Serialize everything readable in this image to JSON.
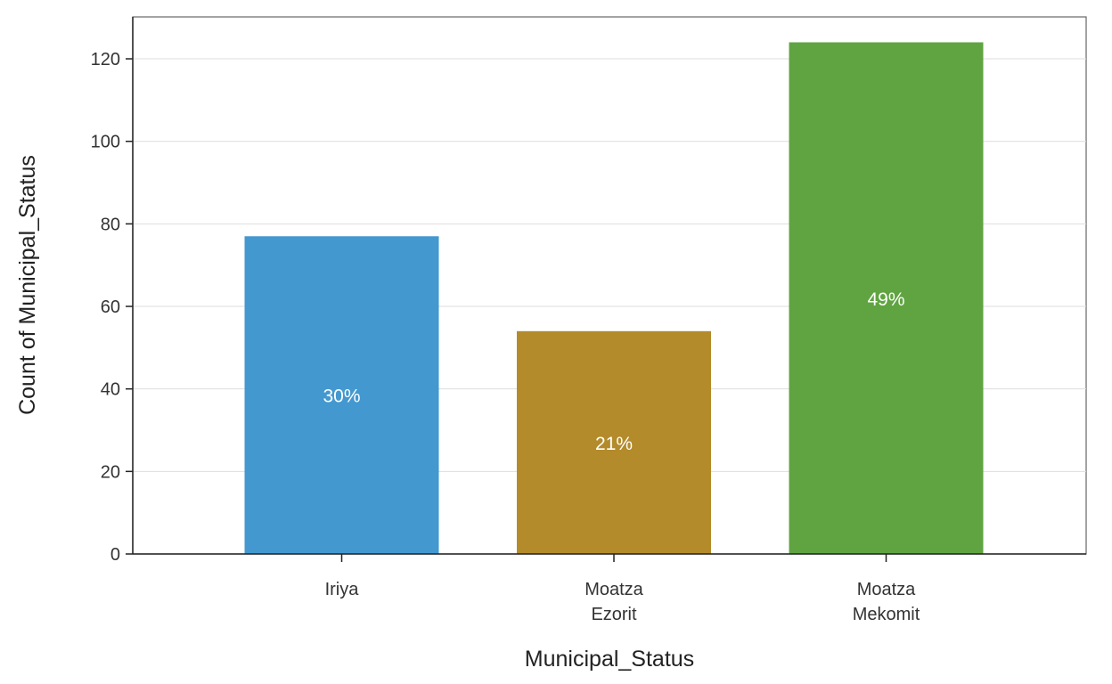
{
  "chart_data": {
    "type": "bar",
    "categories": [
      [
        "Iriya"
      ],
      [
        "Moatza",
        "Ezorit"
      ],
      [
        "Moatza",
        "Mekomit"
      ]
    ],
    "values": [
      77,
      54,
      124
    ],
    "bar_labels": [
      "30%",
      "21%",
      "49%"
    ],
    "colors": [
      "#4398cf",
      "#b38b2b",
      "#60a441"
    ],
    "title": "",
    "xlabel": "Municipal_Status",
    "ylabel": "Count of Municipal_Status",
    "ylim": [
      0,
      130
    ],
    "yticks": [
      0,
      20,
      40,
      60,
      80,
      100,
      120
    ],
    "grid": true,
    "legend": "none"
  }
}
